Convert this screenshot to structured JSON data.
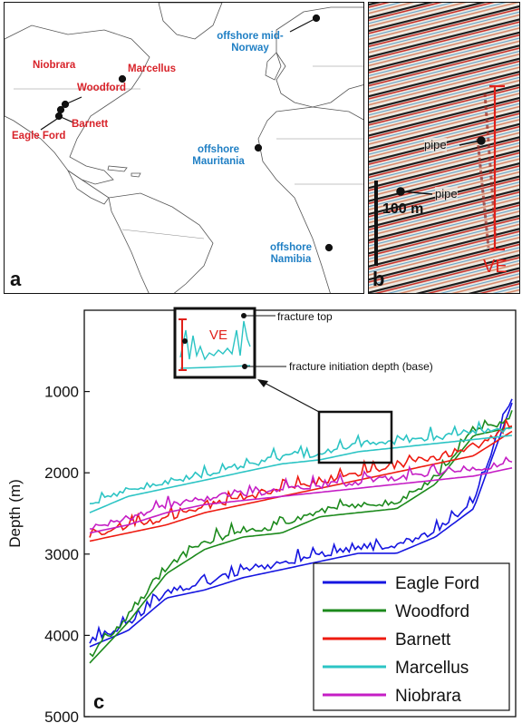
{
  "panel_a": {
    "letter": "a",
    "labels_red": [
      "Niobrara",
      "Marcellus",
      "Woodford",
      "Barnett",
      "Eagle Ford"
    ],
    "labels_blue": [
      "offshore mid-Norway",
      "offshore Mauritania",
      "offshore Namibia"
    ],
    "colors": {
      "red_label": "#d8232a",
      "blue_label": "#1f7fc4"
    }
  },
  "panel_b": {
    "letter": "b",
    "pipe_label_1": "pipe",
    "pipe_label_2": "pipe",
    "scale_label": "100 m",
    "ve_label": "VE"
  },
  "panel_c": {
    "letter": "c",
    "inset_ve_label": "VE",
    "callout_top": "fracture top",
    "callout_base": "fracture initiation depth (base)"
  },
  "chart_data": {
    "type": "line",
    "ylabel": "Depth (m)",
    "y_ticks": [
      "1000",
      "2000",
      "3000",
      "4000",
      "5000"
    ],
    "ylim": [
      5000,
      0
    ],
    "y_inverted": true,
    "legend_position": "bottom-right",
    "series": [
      {
        "name": "Eagle Ford",
        "color": "#1515e0",
        "values": [
          4100,
          3900,
          3500,
          3400,
          3250,
          3150,
          3050,
          2950,
          2950,
          2750,
          2400,
          1100
        ]
      },
      {
        "name": "Woodford",
        "color": "#1c8a1c",
        "values": [
          4300,
          3800,
          3200,
          2900,
          2750,
          2700,
          2500,
          2450,
          2400,
          2100,
          1500,
          1400
        ]
      },
      {
        "name": "Barnett",
        "color": "#ee1a10",
        "values": [
          2800,
          2700,
          2600,
          2450,
          2350,
          2250,
          2150,
          2050,
          1950,
          1850,
          1750,
          1450
        ]
      },
      {
        "name": "Marcellus",
        "color": "#2cc4c4",
        "values": [
          2450,
          2250,
          2150,
          2050,
          1950,
          1850,
          1800,
          1700,
          1650,
          1600,
          1550,
          1500
        ]
      },
      {
        "name": "Niobrara",
        "color": "#c51ec5",
        "values": [
          2700,
          2600,
          2450,
          2350,
          2300,
          2250,
          2200,
          2150,
          2100,
          2050,
          2000,
          1900
        ]
      }
    ]
  }
}
